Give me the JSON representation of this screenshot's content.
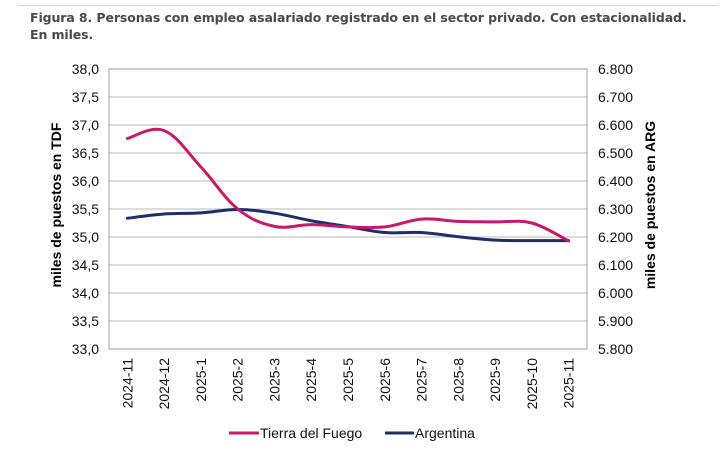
{
  "figure": {
    "title": "Figura 8. Personas con empleo asalariado registrado en el sector privado. Con estacionalidad. En miles."
  },
  "chart_data": {
    "type": "line",
    "title": "Figura 8. Personas con empleo asalariado registrado en el sector privado. Con estacionalidad. En miles.",
    "categories": [
      "2024-11",
      "2024-12",
      "2025-1",
      "2025-2",
      "2025-3",
      "2025-4",
      "2025-5",
      "2025-6",
      "2025-7",
      "2025-8",
      "2025-9",
      "2025-10",
      "2025-11"
    ],
    "ylabel": "miles de puestos en TDF",
    "y2label": "miles de puestos en ARG",
    "ylim": [
      33.0,
      38.0
    ],
    "y2lim": [
      5800,
      6800
    ],
    "yticks": [
      "33,0",
      "33,5",
      "34,0",
      "34,5",
      "35,0",
      "35,5",
      "36,0",
      "36,5",
      "37,0",
      "37,5",
      "38,0"
    ],
    "y2ticks": [
      "5.800",
      "5.900",
      "6.000",
      "6.100",
      "6.200",
      "6.300",
      "6.400",
      "6.500",
      "6.600",
      "6.700",
      "6.800"
    ],
    "grid": true,
    "legend_position": "bottom",
    "series": [
      {
        "name": "Tierra del Fuego",
        "axis": "left",
        "color": "#c8196a",
        "values": [
          36.76,
          36.9,
          36.25,
          35.5,
          35.19,
          35.22,
          35.18,
          35.18,
          35.32,
          35.28,
          35.27,
          35.25,
          34.93
        ]
      },
      {
        "name": "Argentina",
        "axis": "right",
        "color": "#1f2d6b",
        "values": [
          6267,
          6282,
          6286,
          6298,
          6285,
          6258,
          6237,
          6216,
          6216,
          6201,
          6189,
          6187,
          6187
        ]
      }
    ]
  }
}
